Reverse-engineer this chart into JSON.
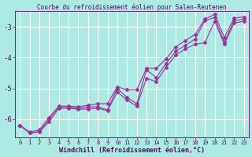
{
  "title": "Courbe du refroidissement éolien pour Salen-Reutenen",
  "xlabel": "Windchill (Refroidissement éolien,°C)",
  "bg_color": "#aeeae4",
  "grid_color": "#ffffff",
  "line_color": "#993399",
  "x_ticks": [
    0,
    1,
    2,
    3,
    4,
    5,
    6,
    7,
    8,
    9,
    10,
    11,
    12,
    13,
    14,
    15,
    16,
    17,
    18,
    19,
    20,
    21,
    22,
    23
  ],
  "y_ticks": [
    -6,
    -5,
    -4,
    -3
  ],
  "xlim": [
    -0.5,
    23.5
  ],
  "ylim": [
    -6.6,
    -2.5
  ],
  "y_zigzag": [
    -6.2,
    -6.45,
    -6.4,
    -6.0,
    -5.6,
    -5.6,
    -5.65,
    -5.6,
    -5.6,
    -5.7,
    -5.0,
    -5.3,
    -5.5,
    -4.4,
    -4.65,
    -4.2,
    -3.8,
    -3.6,
    -3.4,
    -2.8,
    -2.7,
    -3.5,
    -2.8,
    -2.75
  ],
  "y_upper": [
    -6.2,
    -6.42,
    -6.35,
    -5.95,
    -5.58,
    -5.58,
    -5.6,
    -5.55,
    -5.5,
    -5.5,
    -4.95,
    -5.05,
    -5.05,
    -4.35,
    -4.35,
    -4.05,
    -3.65,
    -3.45,
    -3.25,
    -2.75,
    -2.6,
    -3.35,
    -2.72,
    -2.68
  ],
  "y_lower": [
    -6.2,
    -6.45,
    -6.42,
    -6.08,
    -5.65,
    -5.65,
    -5.68,
    -5.67,
    -5.65,
    -5.73,
    -5.12,
    -5.38,
    -5.58,
    -4.68,
    -4.78,
    -4.32,
    -3.92,
    -3.72,
    -3.57,
    -3.52,
    -2.82,
    -3.57,
    -2.88,
    -2.82
  ],
  "marker": "D",
  "marker_size": 2.5,
  "line_width": 0.8
}
